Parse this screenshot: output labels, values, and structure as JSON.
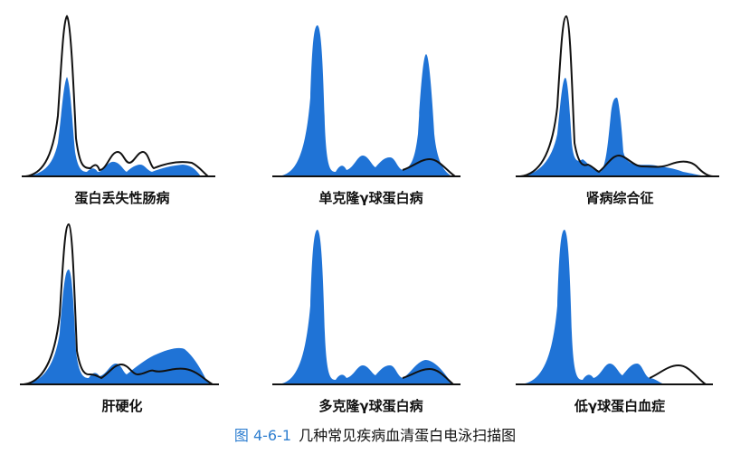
{
  "panels": [
    {
      "title": "蛋白丢失性肠病"
    },
    {
      "title": "单克隆γ球蛋白病"
    },
    {
      "title": "肾病综合征"
    },
    {
      "title": "肝硬化"
    },
    {
      "title": "多克隆γ球蛋白病"
    },
    {
      "title": "低γ球蛋白血症"
    }
  ],
  "caption": {
    "figure_number": "图 4-6-1",
    "text": "几种常见疾病血清蛋白电泳扫描图"
  },
  "colors": {
    "fill": "#1f73d6",
    "outline": "#111111",
    "caption_number": "#2f7fd0"
  }
}
